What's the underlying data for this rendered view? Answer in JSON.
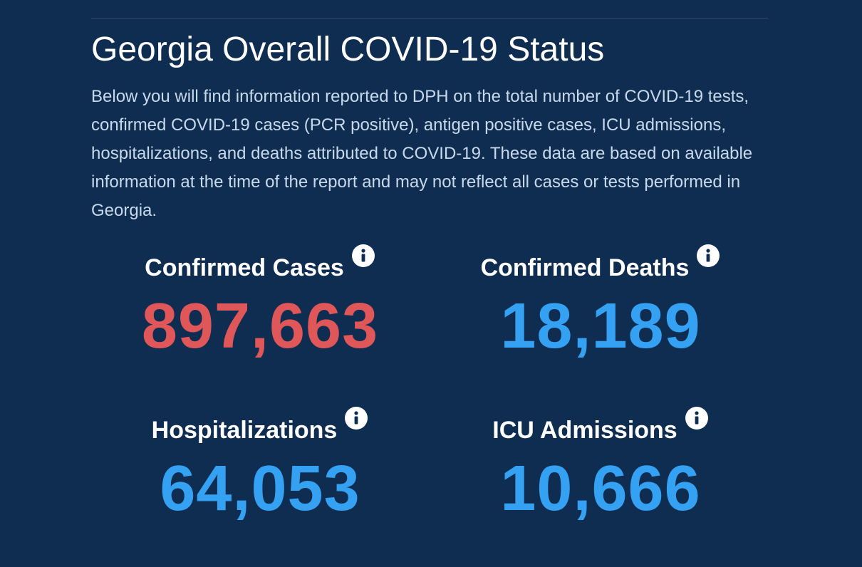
{
  "section": {
    "title": "Georgia Overall COVID-19 Status",
    "description": "Below you will find information reported to DPH on the total number of COVID-19 tests, confirmed COVID-19 cases (PCR positive), antigen positive cases, ICU admissions, hospitalizations, and deaths attributed to COVID-19. These data are based on available information at the time of the report and may not reflect all cases or tests performed in Georgia."
  },
  "stats": {
    "confirmed_cases": {
      "label": "Confirmed Cases",
      "value": "897,663",
      "icon": "info-icon",
      "color": "#e0575a"
    },
    "confirmed_deaths": {
      "label": "Confirmed Deaths",
      "value": "18,189",
      "icon": "info-icon",
      "color": "#34a1f3"
    },
    "hospitalizations": {
      "label": "Hospitalizations",
      "value": "64,053",
      "icon": "info-icon",
      "color": "#34a1f3"
    },
    "icu_admissions": {
      "label": "ICU Admissions",
      "value": "10,666",
      "icon": "info-icon",
      "color": "#34a1f3"
    }
  },
  "theme": {
    "background": "#0f2d50",
    "text": "#ffffff",
    "muted_text": "#c9d9ec"
  }
}
